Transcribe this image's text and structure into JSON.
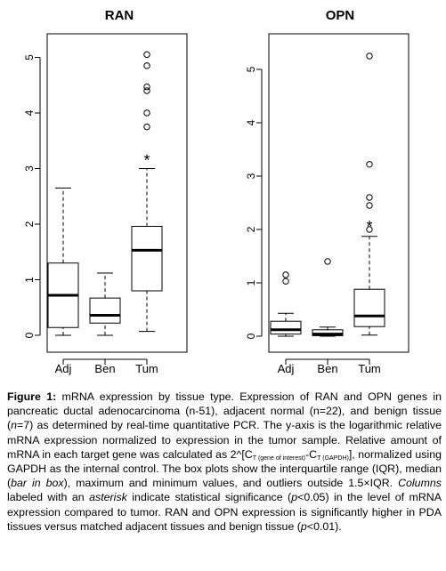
{
  "chart_data": [
    {
      "type": "box",
      "title": "RAN",
      "categories": [
        "Adj",
        "Ben",
        "Tum"
      ],
      "ylim": [
        0,
        5.2
      ],
      "yticks": [
        0,
        1,
        2,
        3,
        4,
        5
      ],
      "grid": false,
      "boxes": [
        {
          "category": "Adj",
          "min": 0.0,
          "q1": 0.14,
          "median": 0.72,
          "q3": 1.3,
          "max": 2.65,
          "outliers": [],
          "significant": false
        },
        {
          "category": "Ben",
          "min": 0.0,
          "q1": 0.22,
          "median": 0.36,
          "q3": 0.67,
          "max": 1.12,
          "outliers": [],
          "significant": false
        },
        {
          "category": "Tum",
          "min": 0.07,
          "q1": 0.8,
          "median": 1.53,
          "q3": 1.96,
          "max": 3.0,
          "outliers": [
            3.75,
            4.0,
            4.4,
            4.47,
            4.85,
            5.05
          ],
          "significant": true
        }
      ],
      "annotation": "*"
    },
    {
      "type": "box",
      "title": "OPN",
      "categories": [
        "Adj",
        "Ben",
        "Tum"
      ],
      "ylim": [
        0,
        5.3
      ],
      "yticks": [
        0,
        1,
        2,
        3,
        4,
        5
      ],
      "grid": false,
      "boxes": [
        {
          "category": "Adj",
          "min": 0.0,
          "q1": 0.04,
          "median": 0.12,
          "q3": 0.28,
          "max": 0.43,
          "outliers": [
            1.03,
            1.15
          ],
          "significant": false
        },
        {
          "category": "Ben",
          "min": 0.0,
          "q1": 0.01,
          "median": 0.04,
          "q3": 0.12,
          "max": 0.17,
          "outliers": [
            1.4
          ],
          "significant": false
        },
        {
          "category": "Tum",
          "min": 0.02,
          "q1": 0.18,
          "median": 0.38,
          "q3": 0.88,
          "max": 1.87,
          "outliers": [
            2.0,
            2.45,
            2.6,
            3.22,
            5.25
          ],
          "significant": true
        }
      ],
      "annotation": "*"
    }
  ],
  "caption": {
    "label": "Figure 1:",
    "p1": " mRNA expression by tissue type. Expression of RAN and OPN genes in pancreatic ductal adenocarcinoma (n-51), adjacent normal (n=22), and benign tissue (",
    "p1_n": "n",
    "p2": "=7) as determined by real-time quantitative PCR. The y-axis is the logarithmic relative mRNA expression normalized to expression in the tumor sample. Relative amount of mRNA in each target gene was calculated as 2^[C",
    "sub1": "T (gene of interest)",
    "p3": "-C",
    "sub2": "T (GAPDH)",
    "p4": "], normalized using GAPDH as the internal control. The box plots show the interquartile range (IQR), median (",
    "italic1": "bar in box",
    "p5": "), maximum and minimum values, and outliers outside 1.5×IQR. ",
    "italic2": "Columns",
    "p6": " labeled with an ",
    "italic3": "asterisk",
    "p7": " indicate statistical significance (",
    "italic4": "p",
    "p8": "<0.05) in the level of mRNA expression compared to tumor. RAN and OPN expression is significantly higher in PDA tissues versus matched adjacent tissues and benign tissue (",
    "italic5": "p",
    "p9": "<0.01)."
  }
}
